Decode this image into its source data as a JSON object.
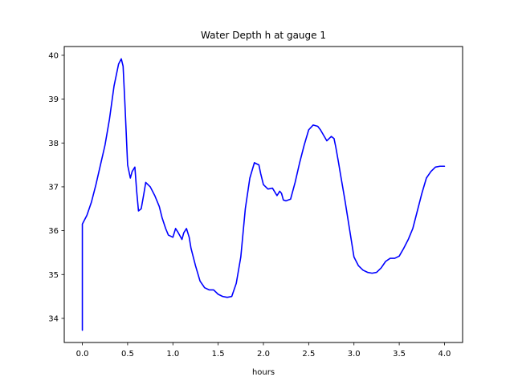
{
  "chart_data": {
    "type": "line",
    "title": "Water Depth h at gauge 1",
    "xlabel": "hours",
    "ylabel": "",
    "xlim": [
      -0.2,
      4.2
    ],
    "ylim": [
      33.45,
      40.2
    ],
    "xticks": [
      0.0,
      0.5,
      1.0,
      1.5,
      2.0,
      2.5,
      3.0,
      3.5,
      4.0
    ],
    "xtick_labels": [
      "0.0",
      "0.5",
      "1.0",
      "1.5",
      "2.0",
      "2.5",
      "3.0",
      "3.5",
      "4.0"
    ],
    "yticks": [
      34,
      35,
      36,
      37,
      38,
      39,
      40
    ],
    "ytick_labels": [
      "34",
      "35",
      "36",
      "37",
      "38",
      "39",
      "40"
    ],
    "grid": false,
    "series": [
      {
        "name": "h",
        "color": "#0000ff",
        "x": [
          0.0,
          0.0,
          0.05,
          0.1,
          0.15,
          0.2,
          0.25,
          0.3,
          0.35,
          0.4,
          0.43,
          0.45,
          0.47,
          0.5,
          0.53,
          0.55,
          0.58,
          0.6,
          0.62,
          0.65,
          0.68,
          0.7,
          0.75,
          0.8,
          0.85,
          0.88,
          0.92,
          0.95,
          1.0,
          1.03,
          1.06,
          1.1,
          1.12,
          1.15,
          1.18,
          1.2,
          1.25,
          1.3,
          1.35,
          1.4,
          1.45,
          1.5,
          1.55,
          1.6,
          1.65,
          1.7,
          1.75,
          1.8,
          1.85,
          1.9,
          1.95,
          1.97,
          2.0,
          2.05,
          2.1,
          2.15,
          2.18,
          2.2,
          2.22,
          2.25,
          2.3,
          2.35,
          2.4,
          2.45,
          2.5,
          2.55,
          2.6,
          2.63,
          2.7,
          2.75,
          2.78,
          2.8,
          2.83,
          2.85,
          2.9,
          2.95,
          3.0,
          3.05,
          3.1,
          3.15,
          3.2,
          3.25,
          3.3,
          3.35,
          3.4,
          3.45,
          3.5,
          3.55,
          3.6,
          3.65,
          3.7,
          3.75,
          3.8,
          3.85,
          3.9,
          3.95,
          4.0
        ],
        "y": [
          33.73,
          36.15,
          36.35,
          36.65,
          37.05,
          37.5,
          37.95,
          38.55,
          39.3,
          39.8,
          39.92,
          39.75,
          38.9,
          37.5,
          37.2,
          37.35,
          37.45,
          36.9,
          36.45,
          36.5,
          36.85,
          37.1,
          37.0,
          36.8,
          36.55,
          36.3,
          36.05,
          35.9,
          35.85,
          36.05,
          35.95,
          35.8,
          35.95,
          36.05,
          35.85,
          35.6,
          35.2,
          34.85,
          34.7,
          34.65,
          34.65,
          34.55,
          34.5,
          34.48,
          34.5,
          34.8,
          35.4,
          36.5,
          37.2,
          37.55,
          37.5,
          37.3,
          37.05,
          36.95,
          36.97,
          36.8,
          36.9,
          36.85,
          36.7,
          36.68,
          36.72,
          37.1,
          37.55,
          37.95,
          38.3,
          38.41,
          38.38,
          38.3,
          38.05,
          38.15,
          38.1,
          37.9,
          37.55,
          37.3,
          36.7,
          36.05,
          35.4,
          35.2,
          35.1,
          35.05,
          35.03,
          35.05,
          35.15,
          35.3,
          35.37,
          35.37,
          35.42,
          35.6,
          35.8,
          36.05,
          36.45,
          36.85,
          37.2,
          37.35,
          37.45,
          37.47,
          37.47
        ]
      }
    ]
  }
}
